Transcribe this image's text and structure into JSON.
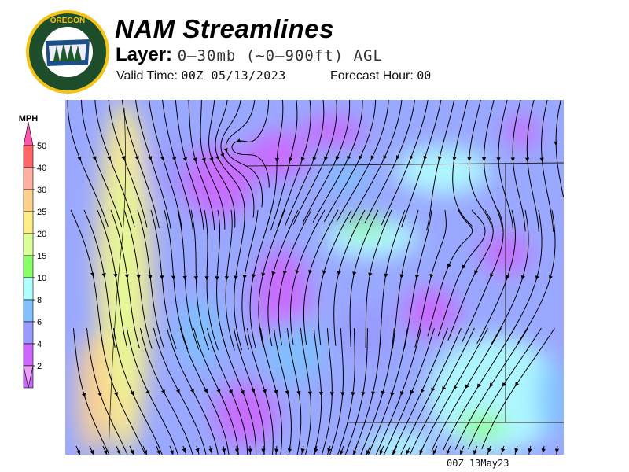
{
  "header": {
    "title": "NAM Streamlines",
    "layer_label": "Layer:",
    "layer_value": "0–30mb (~0–900ft) AGL",
    "valid_label": "Valid Time:",
    "valid_value": "00Z 05/13/2023",
    "forecast_label": "Forecast Hour:",
    "forecast_value": "00"
  },
  "logo": {
    "top_text": "OREGON",
    "bottom_text": "DEPARTMENT OF FORESTRY"
  },
  "legend": {
    "unit": "MPH",
    "bins": [
      {
        "label": "2",
        "color": "#cc66ff"
      },
      {
        "label": "4",
        "color": "#9999ff"
      },
      {
        "label": "6",
        "color": "#80c0ff"
      },
      {
        "label": "8",
        "color": "#b0ffff"
      },
      {
        "label": "10",
        "color": "#88ff66"
      },
      {
        "label": "15",
        "color": "#ddff99"
      },
      {
        "label": "20",
        "color": "#ffee88"
      },
      {
        "label": "25",
        "color": "#ffd08c"
      },
      {
        "label": "30",
        "color": "#ffb0a0"
      },
      {
        "label": "40",
        "color": "#ff6666"
      },
      {
        "label": "50",
        "color": "#ff55aa"
      }
    ],
    "below_color": "#e8a0f8",
    "above_color": "#ff55aa"
  },
  "footer": {
    "stamp": "00Z 13May23"
  }
}
